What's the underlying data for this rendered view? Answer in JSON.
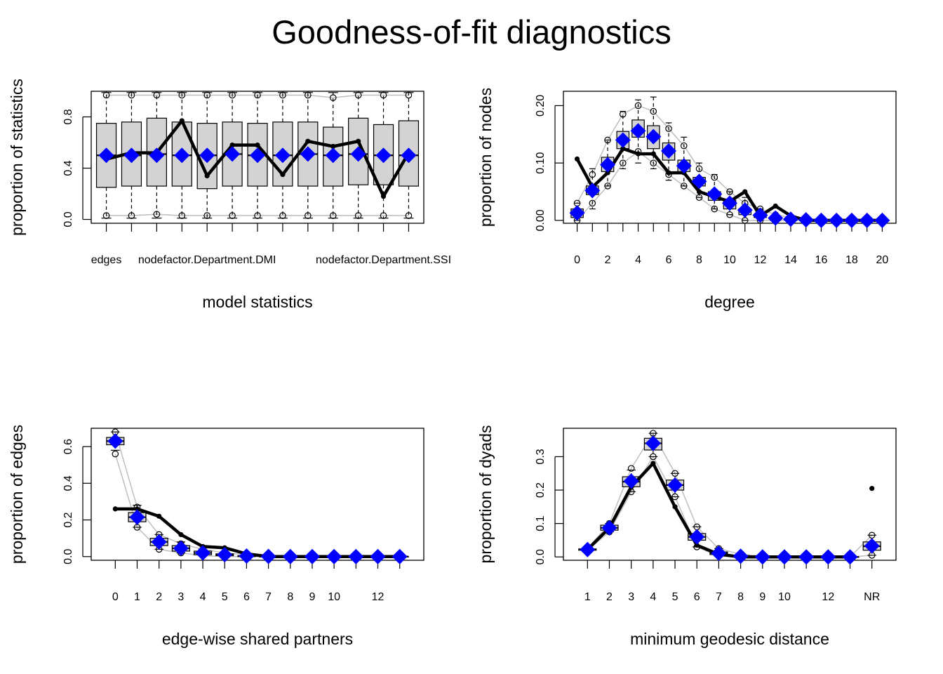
{
  "title": "Goodness-of-fit diagnostics",
  "colors": {
    "observed": "#000000",
    "simmean": "#0000ff",
    "box_fill": "#d3d3d3",
    "ci_line": "#bebebe"
  },
  "chart_data": [
    {
      "id": "model",
      "type": "boxplot",
      "xlabel": "model statistics",
      "ylabel": "proportion of statistics",
      "ylim": [
        -0.03,
        1.0
      ],
      "yticks": [
        0.0,
        0.4,
        0.8
      ],
      "ytick_labels": [
        "0.0",
        "0.4",
        "0.8"
      ],
      "x_positions": [
        1,
        2,
        3,
        4,
        5,
        6,
        7,
        8,
        9,
        10,
        11,
        12,
        13
      ],
      "xlim": [
        0.4,
        13.6
      ],
      "xtick_labels": [
        {
          "x": 1,
          "label": "edges"
        },
        {
          "x": 5,
          "label": "nodefactor.Department.DMI"
        },
        {
          "x": 12,
          "label": "nodefactor.Department.SSI"
        }
      ],
      "xtick_fontsize": 16,
      "box": {
        "q1": [
          0.25,
          0.26,
          0.26,
          0.26,
          0.24,
          0.26,
          0.26,
          0.26,
          0.26,
          0.26,
          0.27,
          0.27,
          0.26
        ],
        "q3": [
          0.75,
          0.76,
          0.79,
          0.76,
          0.75,
          0.76,
          0.75,
          0.76,
          0.76,
          0.72,
          0.79,
          0.74,
          0.77
        ],
        "median": [
          0.5,
          0.5,
          0.51,
          0.5,
          0.5,
          0.51,
          0.5,
          0.5,
          0.51,
          0.5,
          0.51,
          0.5,
          0.5
        ],
        "wlo": [
          0.01,
          0.01,
          0.01,
          0.01,
          0.01,
          0.01,
          0.01,
          0.01,
          0.01,
          0.01,
          0.01,
          0.01,
          0.01
        ],
        "whi": [
          0.99,
          0.99,
          0.99,
          0.99,
          0.99,
          0.99,
          0.99,
          0.99,
          0.99,
          0.99,
          0.99,
          0.99,
          0.99
        ]
      },
      "ci_lo": [
        0.03,
        0.03,
        0.04,
        0.03,
        0.03,
        0.03,
        0.03,
        0.03,
        0.03,
        0.03,
        0.03,
        0.03,
        0.03
      ],
      "ci_hi": [
        0.97,
        0.97,
        0.97,
        0.97,
        0.97,
        0.97,
        0.97,
        0.97,
        0.97,
        0.95,
        0.97,
        0.97,
        0.97
      ],
      "outliers_lo": [
        0.03,
        0.03,
        0.04,
        0.03,
        0.03,
        0.03,
        0.03,
        0.03,
        0.03,
        0.03,
        0.03,
        0.03,
        0.03
      ],
      "outliers_hi": [
        0.97,
        0.97,
        0.97,
        0.97,
        0.97,
        0.97,
        0.97,
        0.97,
        0.97,
        0.95,
        0.97,
        0.97,
        0.97
      ],
      "observed": [
        0.47,
        0.52,
        0.52,
        0.77,
        0.34,
        0.58,
        0.58,
        0.35,
        0.61,
        0.57,
        0.61,
        0.18,
        0.52
      ],
      "simmean": [
        0.5,
        0.5,
        0.5,
        0.5,
        0.5,
        0.51,
        0.5,
        0.5,
        0.51,
        0.5,
        0.51,
        0.5,
        0.5
      ]
    },
    {
      "id": "degree",
      "type": "boxplot",
      "xlabel": "degree",
      "ylabel": "proportion of nodes",
      "ylim": [
        -0.005,
        0.225
      ],
      "yticks": [
        0.0,
        0.1,
        0.2
      ],
      "ytick_labels": [
        "0.00",
        "0.10",
        "0.20"
      ],
      "x_positions": [
        0,
        1,
        2,
        3,
        4,
        5,
        6,
        7,
        8,
        9,
        10,
        11,
        12,
        13,
        14,
        15,
        16,
        17,
        18,
        19,
        20
      ],
      "xlim": [
        -0.9,
        20.9
      ],
      "xtick_labels": [
        {
          "x": 0,
          "label": "0"
        },
        {
          "x": 2,
          "label": "2"
        },
        {
          "x": 4,
          "label": "4"
        },
        {
          "x": 6,
          "label": "6"
        },
        {
          "x": 8,
          "label": "8"
        },
        {
          "x": 10,
          "label": "10"
        },
        {
          "x": 12,
          "label": "12"
        },
        {
          "x": 14,
          "label": "14"
        },
        {
          "x": 16,
          "label": "16"
        },
        {
          "x": 18,
          "label": "18"
        },
        {
          "x": 20,
          "label": "20"
        }
      ],
      "xtick_fontsize": 16,
      "box": {
        "q1": [
          0.005,
          0.045,
          0.085,
          0.125,
          0.145,
          0.125,
          0.105,
          0.085,
          0.06,
          0.035,
          0.02,
          0.01,
          0.005,
          0.002,
          0,
          0,
          0,
          0,
          0,
          0,
          0
        ],
        "q3": [
          0.02,
          0.06,
          0.11,
          0.155,
          0.175,
          0.165,
          0.135,
          0.105,
          0.075,
          0.05,
          0.035,
          0.02,
          0.01,
          0.005,
          0.002,
          0,
          0,
          0,
          0,
          0,
          0
        ],
        "median": [
          0.012,
          0.052,
          0.098,
          0.14,
          0.158,
          0.145,
          0.12,
          0.095,
          0.068,
          0.045,
          0.03,
          0.018,
          0.008,
          0.003,
          0.001,
          0,
          0,
          0,
          0,
          0,
          0
        ],
        "wlo": [
          0,
          0.02,
          0.06,
          0.09,
          0.1,
          0.09,
          0.07,
          0.06,
          0.04,
          0.02,
          0.01,
          0,
          0,
          0,
          0,
          0,
          0,
          0,
          0,
          0,
          0
        ],
        "whi": [
          0.03,
          0.09,
          0.14,
          0.19,
          0.21,
          0.215,
          0.17,
          0.145,
          0.1,
          0.08,
          0.05,
          0.04,
          0.02,
          0.01,
          0.005,
          0,
          0,
          0,
          0,
          0,
          0
        ]
      },
      "ci_lo": [
        0.0,
        0.03,
        0.06,
        0.1,
        0.12,
        0.1,
        0.08,
        0.06,
        0.04,
        0.02,
        0.01,
        0.0,
        0.0,
        0.0,
        0.0,
        0,
        0,
        0,
        0,
        0,
        0
      ],
      "ci_hi": [
        0.03,
        0.08,
        0.14,
        0.185,
        0.2,
        0.19,
        0.16,
        0.13,
        0.09,
        0.075,
        0.05,
        0.03,
        0.02,
        0.01,
        0.005,
        0,
        0,
        0,
        0,
        0,
        0
      ],
      "outliers_lo": [
        0.0,
        0.03,
        0.06,
        0.1,
        0.12,
        0.1,
        0.08,
        0.06,
        0.04,
        0.02,
        0.01,
        0.0,
        0.0,
        0.0,
        0.0,
        0,
        0,
        0,
        0,
        0,
        0
      ],
      "outliers_hi": [
        0.03,
        0.08,
        0.14,
        0.185,
        0.2,
        0.19,
        0.16,
        0.13,
        0.09,
        0.075,
        0.05,
        0.03,
        0.02,
        0.01,
        0.005,
        0,
        0,
        0,
        0,
        0,
        0
      ],
      "observed": [
        0.107,
        0.058,
        0.083,
        0.125,
        0.116,
        0.116,
        0.083,
        0.083,
        0.05,
        0.041,
        0.033,
        0.05,
        0.008,
        0.025,
        0.008,
        0,
        0,
        0,
        0,
        0,
        0
      ],
      "simmean": [
        0.013,
        0.052,
        0.097,
        0.14,
        0.156,
        0.146,
        0.121,
        0.095,
        0.068,
        0.046,
        0.03,
        0.018,
        0.009,
        0.004,
        0.002,
        0.001,
        0,
        0,
        0,
        0,
        0
      ]
    },
    {
      "id": "espart",
      "type": "boxplot",
      "xlabel": "edge-wise shared partners",
      "ylabel": "proportion of edges",
      "ylim": [
        -0.02,
        0.7
      ],
      "yticks": [
        0.0,
        0.2,
        0.4,
        0.6
      ],
      "ytick_labels": [
        "0.0",
        "0.2",
        "0.4",
        "0.6"
      ],
      "x_positions": [
        0,
        1,
        2,
        3,
        4,
        5,
        6,
        7,
        8,
        9,
        10,
        11,
        12,
        13
      ],
      "xlim": [
        -1.1,
        14.1
      ],
      "xtick_labels": [
        {
          "x": 0,
          "label": "0"
        },
        {
          "x": 1,
          "label": "1"
        },
        {
          "x": 2,
          "label": "2"
        },
        {
          "x": 3,
          "label": "3"
        },
        {
          "x": 4,
          "label": "4"
        },
        {
          "x": 5,
          "label": "5"
        },
        {
          "x": 6,
          "label": "6"
        },
        {
          "x": 7,
          "label": "7"
        },
        {
          "x": 8,
          "label": "8"
        },
        {
          "x": 9,
          "label": "9"
        },
        {
          "x": 10,
          "label": "10"
        },
        {
          "x": 12,
          "label": "12"
        }
      ],
      "xtick_fontsize": 16,
      "box": {
        "q1": [
          0.61,
          0.19,
          0.06,
          0.03,
          0.01,
          0.005,
          0,
          0,
          0,
          0,
          0,
          0,
          0,
          0
        ],
        "q3": [
          0.65,
          0.24,
          0.1,
          0.06,
          0.03,
          0.015,
          0.005,
          0,
          0,
          0,
          0,
          0,
          0,
          0
        ],
        "median": [
          0.63,
          0.215,
          0.08,
          0.045,
          0.02,
          0.01,
          0.003,
          0,
          0,
          0,
          0,
          0,
          0,
          0
        ],
        "wlo": [
          0.58,
          0.16,
          0.04,
          0.02,
          0.005,
          0,
          0,
          0,
          0,
          0,
          0,
          0,
          0,
          0
        ],
        "whi": [
          0.68,
          0.28,
          0.12,
          0.08,
          0.04,
          0.025,
          0.01,
          0,
          0,
          0,
          0,
          0,
          0,
          0
        ]
      },
      "ci_lo": [
        0.56,
        0.16,
        0.04,
        0.02,
        0.005,
        0.0,
        0,
        0,
        0,
        0,
        0,
        0,
        0,
        0
      ],
      "ci_hi": [
        0.68,
        0.27,
        0.12,
        0.07,
        0.04,
        0.02,
        0.01,
        0,
        0,
        0,
        0,
        0,
        0,
        0
      ],
      "outliers_lo": [
        0.56,
        0.16,
        0.04,
        0.02,
        0.005,
        0.0,
        0,
        0,
        0,
        0,
        0,
        0,
        0,
        0
      ],
      "outliers_hi": [
        0.68,
        0.27,
        0.12,
        0.07,
        0.04,
        0.02,
        0.01,
        0,
        0,
        0,
        0,
        0,
        0,
        0
      ],
      "observed": [
        0.26,
        0.26,
        0.22,
        0.12,
        0.055,
        0.048,
        0.015,
        0.0,
        0,
        0,
        0,
        0,
        0,
        0
      ],
      "simmean": [
        0.63,
        0.215,
        0.08,
        0.045,
        0.02,
        0.01,
        0.003,
        0.001,
        0,
        0,
        0,
        0,
        0,
        0
      ]
    },
    {
      "id": "dist",
      "type": "boxplot",
      "xlabel": "minimum geodesic distance",
      "ylabel": "proportion of dyads",
      "ylim": [
        -0.01,
        0.385
      ],
      "yticks": [
        0.0,
        0.1,
        0.2,
        0.3
      ],
      "ytick_labels": [
        "0.0",
        "0.1",
        "0.2",
        "0.3"
      ],
      "x_positions": [
        1,
        2,
        3,
        4,
        5,
        6,
        7,
        8,
        9,
        10,
        11,
        12,
        13,
        14
      ],
      "xlim": [
        -0.1,
        15.1
      ],
      "xtick_labels": [
        {
          "x": 1,
          "label": "1"
        },
        {
          "x": 2,
          "label": "2"
        },
        {
          "x": 3,
          "label": "3"
        },
        {
          "x": 4,
          "label": "4"
        },
        {
          "x": 5,
          "label": "5"
        },
        {
          "x": 6,
          "label": "6"
        },
        {
          "x": 7,
          "label": "7"
        },
        {
          "x": 8,
          "label": "8"
        },
        {
          "x": 9,
          "label": "9"
        },
        {
          "x": 10,
          "label": "10"
        },
        {
          "x": 12,
          "label": "12"
        },
        {
          "x": 14,
          "label": "NR"
        }
      ],
      "xtick_fontsize": 16,
      "box": {
        "q1": [
          0.02,
          0.08,
          0.21,
          0.32,
          0.2,
          0.05,
          0.007,
          0.001,
          0,
          0,
          0,
          0,
          0,
          0.02
        ],
        "q3": [
          0.024,
          0.095,
          0.24,
          0.355,
          0.23,
          0.07,
          0.015,
          0.004,
          0,
          0,
          0,
          0,
          0,
          0.045
        ],
        "median": [
          0.022,
          0.087,
          0.225,
          0.34,
          0.215,
          0.06,
          0.011,
          0.002,
          0,
          0,
          0,
          0,
          0,
          0.032
        ],
        "wlo": [
          0.02,
          0.075,
          0.195,
          0.3,
          0.18,
          0.03,
          0.002,
          0,
          0,
          0,
          0,
          0,
          0,
          0.005
        ],
        "whi": [
          0.025,
          0.1,
          0.26,
          0.37,
          0.25,
          0.09,
          0.025,
          0.008,
          0.002,
          0,
          0,
          0,
          0,
          0.065
        ]
      },
      "ci_lo": [
        0.02,
        0.075,
        0.195,
        0.3,
        0.18,
        0.03,
        0.002,
        0,
        0,
        0,
        0,
        0,
        0,
        0.005
      ],
      "ci_hi": [
        0.025,
        0.1,
        0.265,
        0.37,
        0.25,
        0.09,
        0.025,
        0.008,
        0.002,
        0,
        0,
        0,
        0,
        0.065
      ],
      "outliers_lo": [
        0.02,
        0.075,
        0.195,
        0.3,
        0.18,
        0.03,
        0.002,
        0,
        0,
        0,
        0,
        0,
        0,
        0.005
      ],
      "outliers_hi": [
        0.025,
        0.1,
        0.265,
        0.37,
        0.25,
        0.09,
        0.025,
        0.008,
        0.002,
        0,
        0,
        0,
        0,
        0.065
      ],
      "observed": [
        0.022,
        0.087,
        0.21,
        0.28,
        0.15,
        0.035,
        0.008,
        0.0,
        0,
        0,
        0,
        0,
        0,
        0.205
      ],
      "observed_lines_to": 13,
      "simmean": [
        0.022,
        0.087,
        0.227,
        0.34,
        0.215,
        0.06,
        0.011,
        0.002,
        0.0,
        0,
        0,
        0,
        0,
        0.033
      ]
    }
  ]
}
